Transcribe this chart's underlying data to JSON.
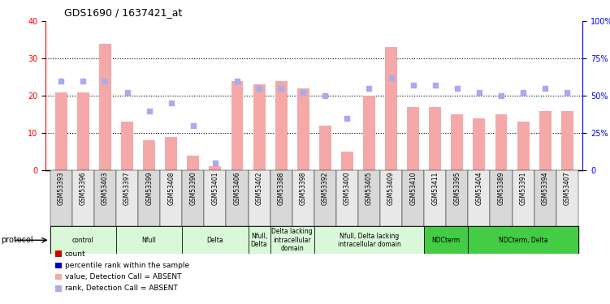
{
  "title": "GDS1690 / 1637421_at",
  "samples": [
    "GSM53393",
    "GSM53396",
    "GSM53403",
    "GSM53397",
    "GSM53399",
    "GSM53408",
    "GSM53390",
    "GSM53401",
    "GSM53406",
    "GSM53402",
    "GSM53388",
    "GSM53398",
    "GSM53392",
    "GSM53400",
    "GSM53405",
    "GSM53409",
    "GSM53410",
    "GSM53411",
    "GSM53395",
    "GSM53404",
    "GSM53389",
    "GSM53391",
    "GSM53394",
    "GSM53407"
  ],
  "bar_values": [
    21,
    21,
    34,
    13,
    8,
    9,
    4,
    1,
    24,
    23,
    24,
    22,
    12,
    5,
    20,
    33,
    17,
    17,
    15,
    14,
    15,
    13,
    16,
    16
  ],
  "rank_values": [
    60,
    60,
    60,
    52,
    40,
    45,
    30,
    5,
    60,
    55,
    55,
    52,
    50,
    35,
    55,
    62,
    57,
    57,
    55,
    52,
    50,
    52,
    55,
    52
  ],
  "bar_color": "#f4a8a8",
  "rank_color": "#aaaaee",
  "ylim_left": [
    0,
    40
  ],
  "ylim_right": [
    0,
    100
  ],
  "yticks_left": [
    0,
    10,
    20,
    30,
    40
  ],
  "yticks_right": [
    0,
    25,
    50,
    75,
    100
  ],
  "protocol_groups": [
    {
      "label": "control",
      "start": 0,
      "end": 3,
      "color": "#d8f8d8"
    },
    {
      "label": "Nfull",
      "start": 3,
      "end": 6,
      "color": "#d8f8d8"
    },
    {
      "label": "Delta",
      "start": 6,
      "end": 9,
      "color": "#d8f8d8"
    },
    {
      "label": "Nfull,\nDelta",
      "start": 9,
      "end": 10,
      "color": "#d8f8d8"
    },
    {
      "label": "Delta lacking\nintracellular\ndomain",
      "start": 10,
      "end": 12,
      "color": "#d8f8d8"
    },
    {
      "label": "Nfull, Delta lacking\nintracellular domain",
      "start": 12,
      "end": 17,
      "color": "#d8f8d8"
    },
    {
      "label": "NDCterm",
      "start": 17,
      "end": 19,
      "color": "#44cc44"
    },
    {
      "label": "NDCterm, Delta",
      "start": 19,
      "end": 24,
      "color": "#44cc44"
    }
  ],
  "group_bg_colors": [
    "#e8e8e8",
    "#e8e8e8",
    "#e8e8e8",
    "#e8e8e8",
    "#e8e8e8",
    "#e8e8e8",
    "#44cc44",
    "#44cc44"
  ],
  "legend_items": [
    {
      "label": "count",
      "color": "#cc0000"
    },
    {
      "label": "percentile rank within the sample",
      "color": "#0000cc"
    },
    {
      "label": "value, Detection Call = ABSENT",
      "color": "#f4a8a8"
    },
    {
      "label": "rank, Detection Call = ABSENT",
      "color": "#aaaaee"
    }
  ]
}
